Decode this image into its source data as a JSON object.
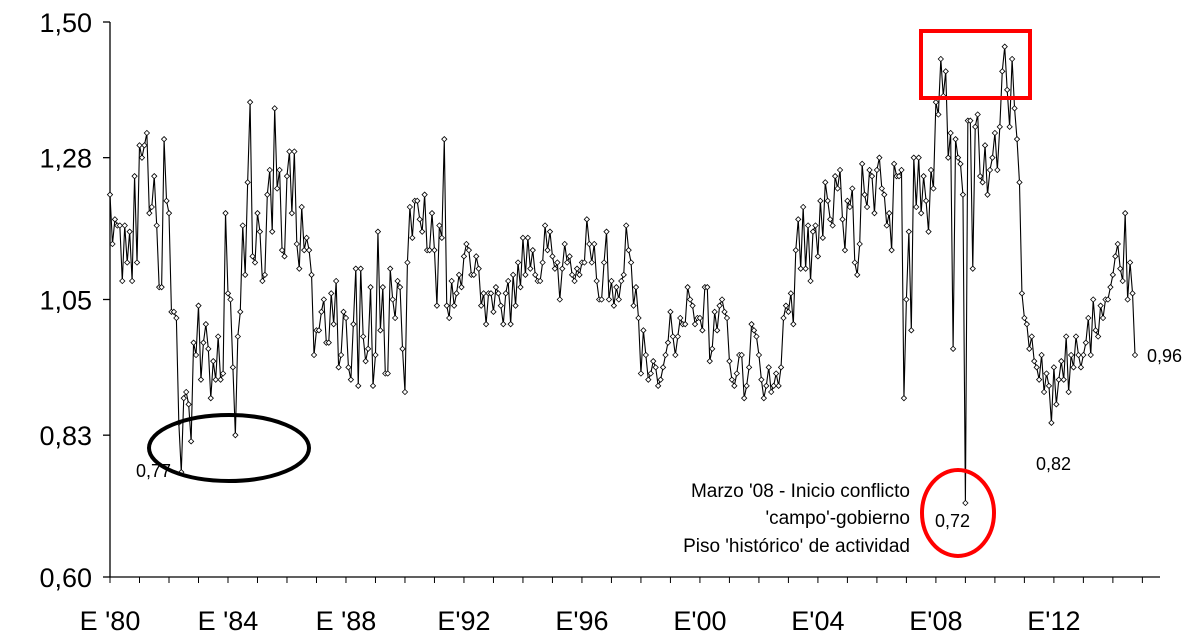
{
  "chart_data": {
    "type": "line",
    "title": "",
    "xlabel": "",
    "ylabel": "",
    "ylim": [
      0.6,
      1.5
    ],
    "y_ticks": [
      "0,60",
      "0,83",
      "1,05",
      "1,28",
      "1,50"
    ],
    "y_tick_values": [
      0.6,
      0.83,
      1.05,
      1.28,
      1.5
    ],
    "x_ticks": [
      "E '80",
      "E '84",
      "E '88",
      "E'92",
      "E'96",
      "E'00",
      "E'04",
      "E'08",
      "E'12"
    ],
    "x_start": "1980-01",
    "x_end": "2014-01",
    "grid": false,
    "legend": "none",
    "series_color": "#000000",
    "marker": "diamond",
    "annotations": {
      "min_1983": "0,77",
      "min_2008": "0,72",
      "min_2011": "0,82",
      "last_value": "0,96",
      "conflict_line1": "Marzo '08 - Inicio conflicto",
      "conflict_line2": "'campo'-gobierno",
      "conflict_line3": "Piso 'histórico' de actividad"
    },
    "highlight_colors": {
      "ellipse_black": "#000000",
      "ellipse_red": "#ff0000",
      "box_red": "#ff0000"
    },
    "series": [
      {
        "values": [
          1.22,
          1.14,
          1.18,
          1.17,
          1.17,
          1.08,
          1.17,
          1.11,
          1.16,
          1.08,
          1.25,
          1.11,
          1.3,
          1.28,
          1.3,
          1.32,
          1.19,
          1.2,
          1.25,
          1.17,
          1.07,
          1.07,
          1.31,
          1.21,
          1.19,
          1.03,
          1.03,
          1.02,
          0.85,
          0.77,
          0.89,
          0.9,
          0.88,
          0.82,
          0.98,
          0.96,
          1.04,
          0.92,
          0.98,
          1.01,
          0.97,
          0.89,
          0.95,
          0.92,
          0.99,
          0.92,
          0.93,
          1.19,
          1.06,
          1.05,
          0.94,
          0.83,
          0.99,
          1.03,
          1.17,
          1.09,
          1.24,
          1.37,
          1.12,
          1.11,
          1.19,
          1.16,
          1.08,
          1.09,
          1.22,
          1.26,
          1.16,
          1.36,
          1.23,
          1.26,
          1.13,
          1.12,
          1.25,
          1.29,
          1.19,
          1.29,
          1.14,
          1.1,
          1.2,
          1.13,
          1.15,
          1.13,
          1.09,
          0.96,
          1.0,
          1.0,
          1.03,
          1.05,
          0.98,
          0.98,
          1.06,
          1.01,
          1.08,
          0.94,
          0.96,
          1.03,
          1.02,
          0.94,
          0.92,
          1.01,
          1.1,
          0.91,
          1.1,
          0.99,
          0.95,
          0.97,
          1.07,
          0.91,
          0.96,
          1.16,
          1.0,
          1.07,
          0.93,
          0.93,
          1.1,
          1.05,
          1.02,
          1.08,
          1.07,
          0.97,
          0.9,
          1.11,
          1.2,
          1.15,
          1.21,
          1.21,
          1.18,
          1.16,
          1.22,
          1.13,
          1.13,
          1.19,
          1.13,
          1.04,
          1.17,
          1.15,
          1.31,
          1.04,
          1.02,
          1.08,
          1.04,
          1.06,
          1.09,
          1.07,
          1.12,
          1.14,
          1.13,
          1.09,
          1.09,
          1.12,
          1.1,
          1.04,
          1.06,
          1.01,
          1.06,
          1.06,
          1.03,
          1.07,
          1.06,
          1.04,
          1.01,
          1.06,
          1.08,
          1.01,
          1.09,
          1.04,
          1.11,
          1.07,
          1.15,
          1.09,
          1.15,
          1.1,
          1.13,
          1.09,
          1.08,
          1.08,
          1.11,
          1.17,
          1.13,
          1.16,
          1.12,
          1.1,
          1.11,
          1.05,
          1.1,
          1.14,
          1.11,
          1.12,
          1.09,
          1.08,
          1.1,
          1.09,
          1.11,
          1.11,
          1.18,
          1.14,
          1.11,
          1.14,
          1.08,
          1.05,
          1.05,
          1.11,
          1.16,
          1.05,
          1.08,
          1.04,
          1.07,
          1.05,
          1.08,
          1.09,
          1.17,
          1.13,
          1.11,
          1.04,
          1.07,
          1.02,
          0.93,
          1.0,
          0.96,
          0.92,
          0.93,
          0.95,
          0.94,
          0.91,
          0.92,
          0.94,
          0.96,
          0.98,
          1.03,
          0.99,
          0.96,
          0.99,
          1.02,
          1.01,
          1.01,
          1.07,
          1.05,
          1.04,
          1.01,
          1.02,
          1.02,
          1.0,
          1.07,
          1.07,
          0.95,
          0.97,
          1.03,
          1.0,
          1.04,
          1.05,
          1.03,
          1.02,
          0.95,
          0.92,
          0.91,
          0.93,
          0.96,
          0.96,
          0.89,
          0.91,
          0.94,
          1.01,
          1.0,
          0.99,
          0.96,
          0.92,
          0.89,
          0.91,
          0.94,
          0.9,
          0.91,
          0.93,
          0.91,
          0.94,
          1.02,
          1.04,
          1.03,
          1.06,
          1.01,
          1.13,
          1.18,
          1.1,
          1.2,
          1.1,
          1.17,
          1.08,
          1.16,
          1.17,
          1.12,
          1.21,
          1.15,
          1.24,
          1.21,
          1.18,
          1.17,
          1.25,
          1.23,
          1.26,
          1.18,
          1.13,
          1.21,
          1.2,
          1.23,
          1.11,
          1.09,
          1.14,
          1.27,
          1.22,
          1.2,
          1.26,
          1.25,
          1.19,
          1.26,
          1.28,
          1.23,
          1.22,
          1.17,
          1.19,
          1.13,
          1.27,
          1.25,
          1.25,
          1.26,
          0.89,
          1.05,
          1.16,
          1.0,
          1.28,
          1.2,
          1.28,
          1.19,
          1.25,
          1.21,
          1.16,
          1.26,
          1.23,
          1.37,
          1.35,
          1.44,
          1.38,
          1.42,
          1.28,
          1.32,
          0.97,
          1.31,
          1.28,
          1.27,
          1.22,
          0.72,
          1.34,
          1.34,
          1.1,
          1.33,
          1.35,
          1.25,
          1.24,
          1.3,
          1.22,
          1.26,
          1.28,
          1.32,
          1.26,
          1.33,
          1.42,
          1.46,
          1.39,
          1.33,
          1.44,
          1.36,
          1.31,
          1.24,
          1.06,
          1.02,
          1.01,
          0.97,
          0.99,
          0.95,
          0.94,
          0.92,
          0.96,
          0.9,
          0.93,
          0.91,
          0.85,
          0.94,
          0.88,
          0.92,
          0.95,
          0.92,
          0.99,
          0.9,
          0.96,
          0.94,
          0.99,
          0.96,
          0.94,
          0.96,
          0.98,
          1.02,
          0.96,
          1.05,
          1.0,
          0.99,
          1.04,
          1.02,
          1.05,
          1.05,
          1.07,
          1.09,
          1.12,
          1.14,
          1.1,
          1.08,
          1.19,
          1.05,
          1.11,
          1.06,
          0.96
        ]
      }
    ]
  }
}
